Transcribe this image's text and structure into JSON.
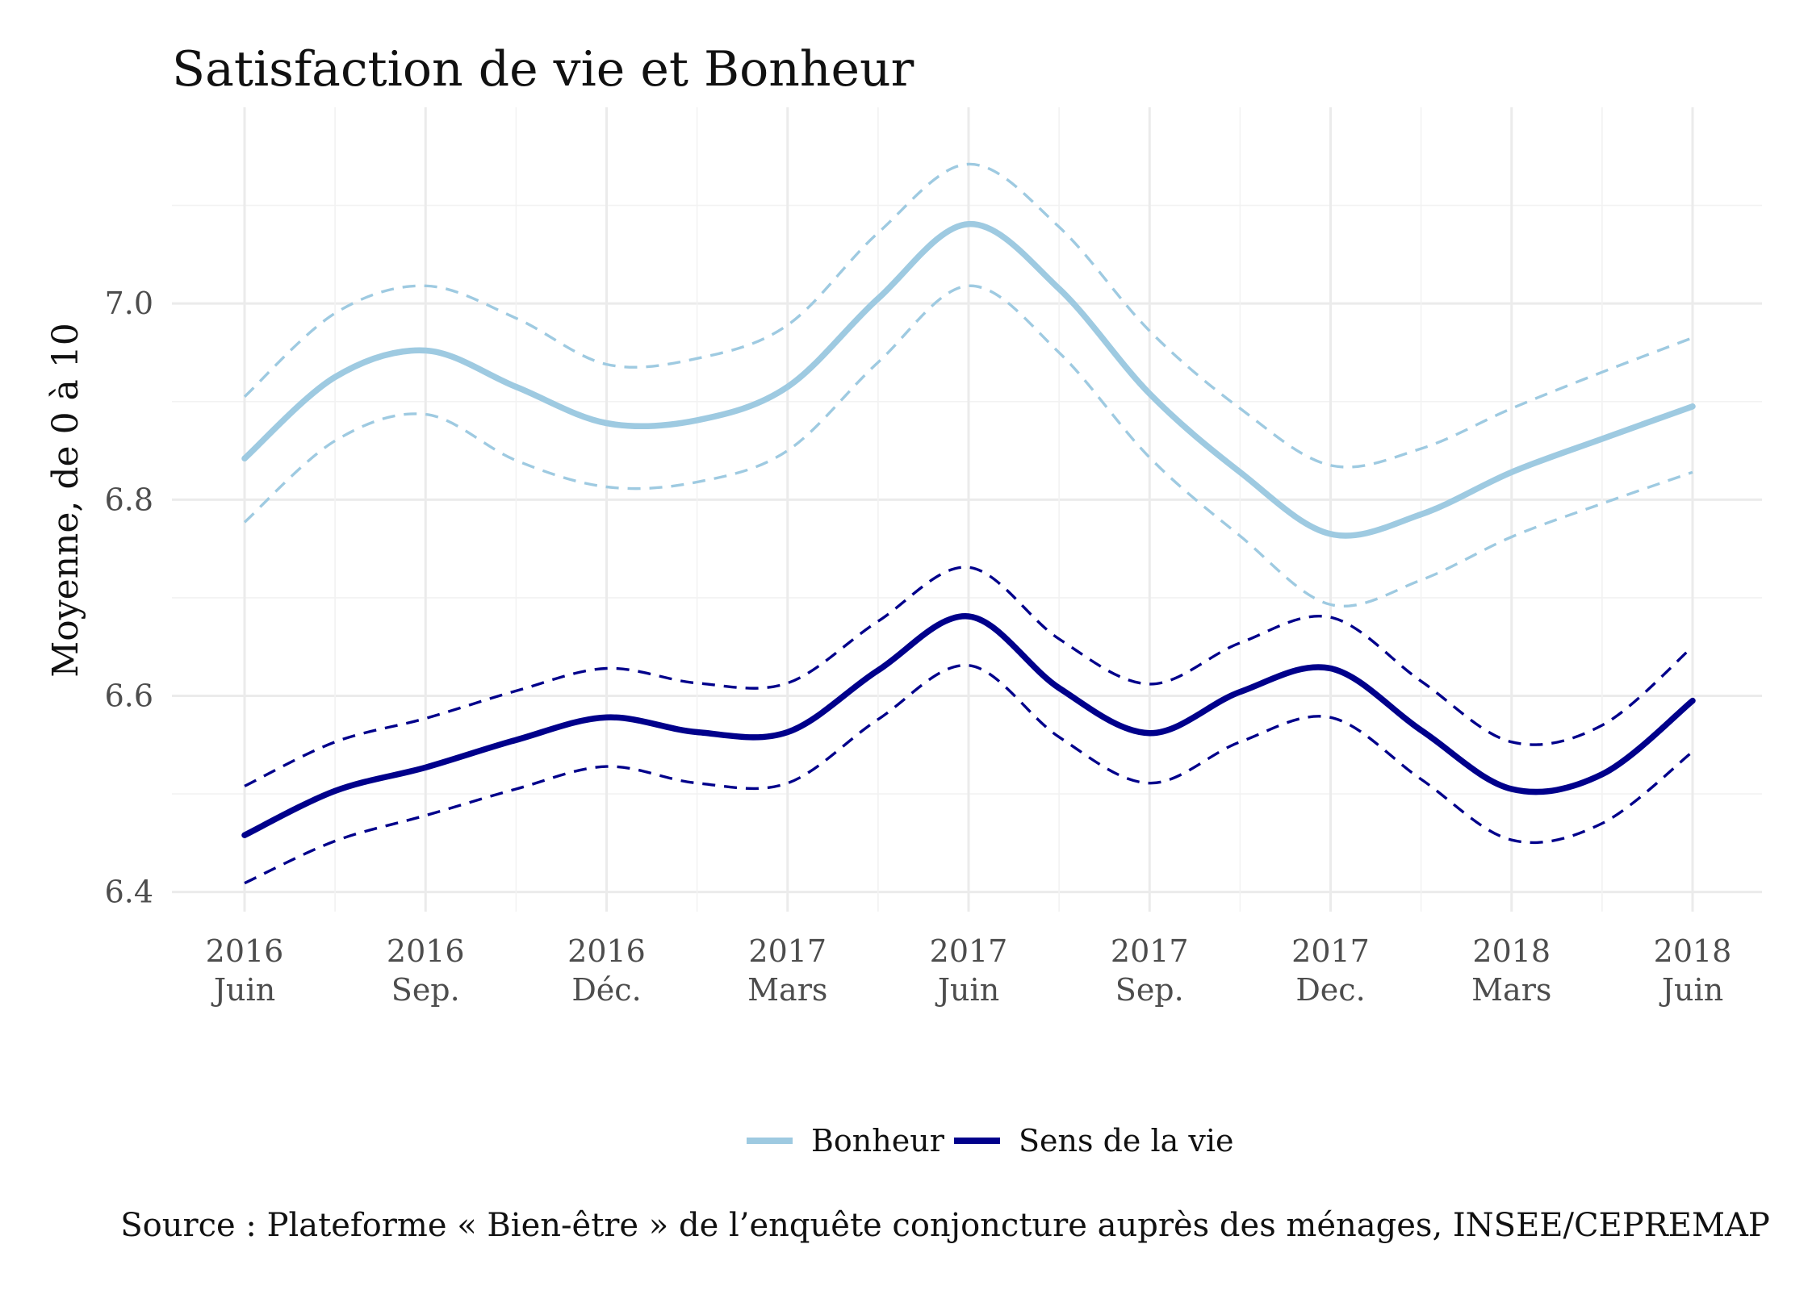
{
  "chart_data": {
    "type": "line",
    "title": "Satisfaction de vie et Bonheur",
    "ylabel": "Moyenne, de 0 à 10",
    "xlabel": "",
    "ylim": [
      6.38,
      7.2
    ],
    "yticks": [
      {
        "value": 6.4,
        "label": "6.4"
      },
      {
        "value": 6.6,
        "label": "6.6"
      },
      {
        "value": 6.8,
        "label": "6.8"
      },
      {
        "value": 7.0,
        "label": "7.0"
      }
    ],
    "xticks": [
      {
        "year": "2016",
        "month": "Juin"
      },
      {
        "year": "2016",
        "month": "Sep."
      },
      {
        "year": "2016",
        "month": "Déc."
      },
      {
        "year": "2017",
        "month": "Mars"
      },
      {
        "year": "2017",
        "month": "Juin"
      },
      {
        "year": "2017",
        "month": "Sep."
      },
      {
        "year": "2017",
        "month": "Dec."
      },
      {
        "year": "2018",
        "month": "Mars"
      },
      {
        "year": "2018",
        "month": "Juin"
      }
    ],
    "x": [
      0,
      0.5,
      1,
      1.5,
      2,
      2.5,
      3,
      3.5,
      4,
      4.5,
      5,
      5.5,
      6,
      6.5,
      7,
      7.5,
      8
    ],
    "series": [
      {
        "name": "Bonheur",
        "color": "#9ecae1",
        "values": [
          6.842,
          6.925,
          6.952,
          6.915,
          6.878,
          6.881,
          6.915,
          7.005,
          7.081,
          7.015,
          6.908,
          6.828,
          6.765,
          6.785,
          6.828,
          6.862,
          6.895
        ],
        "lower": [
          6.777,
          6.86,
          6.887,
          6.84,
          6.813,
          6.818,
          6.85,
          6.94,
          7.018,
          6.95,
          6.843,
          6.763,
          6.693,
          6.718,
          6.762,
          6.796,
          6.828
        ],
        "upper": [
          6.905,
          6.99,
          7.018,
          6.985,
          6.938,
          6.944,
          6.978,
          7.072,
          7.142,
          7.078,
          6.972,
          6.893,
          6.835,
          6.852,
          6.893,
          6.93,
          6.965
        ]
      },
      {
        "name": "Sens de la vie",
        "color": "#00008b",
        "values": [
          6.458,
          6.503,
          6.527,
          6.555,
          6.578,
          6.563,
          6.563,
          6.626,
          6.681,
          6.608,
          6.562,
          6.604,
          6.628,
          6.565,
          6.505,
          6.52,
          6.595
        ],
        "lower": [
          6.409,
          6.452,
          6.478,
          6.505,
          6.528,
          6.511,
          6.511,
          6.576,
          6.631,
          6.558,
          6.511,
          6.553,
          6.578,
          6.515,
          6.453,
          6.47,
          6.543
        ],
        "upper": [
          6.508,
          6.553,
          6.577,
          6.605,
          6.628,
          6.613,
          6.613,
          6.676,
          6.731,
          6.658,
          6.612,
          6.654,
          6.68,
          6.615,
          6.553,
          6.57,
          6.65
        ]
      }
    ],
    "legend": {
      "position": "bottom",
      "items": [
        "Bonheur",
        "Sens de la vie"
      ]
    },
    "grid": true,
    "source": "Source : Plateforme « Bien-être » de l’enquête conjoncture auprès des ménages, INSEE/CEPREMAP"
  }
}
